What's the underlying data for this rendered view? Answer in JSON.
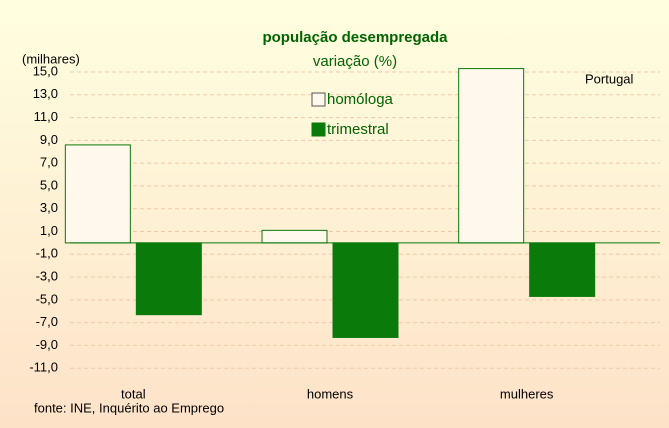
{
  "chart_data": {
    "type": "bar",
    "title": "população desempregada",
    "subtitle": "variação (%)",
    "y_axis_label": "(milhares)",
    "annotation": "Portugal",
    "source": "fonte: INE, Inquérito ao Emprego",
    "categories": [
      "total",
      "homens",
      "mulheres"
    ],
    "series": [
      {
        "name": "homóloga",
        "color": "#fff8ec",
        "values": [
          8.6,
          1.1,
          15.3
        ]
      },
      {
        "name": "trimestral",
        "color": "#0a7a0a",
        "values": [
          -6.3,
          -8.3,
          -4.7
        ]
      }
    ],
    "ylim": [
      -13,
      15
    ],
    "yticks": [
      {
        "value": -11,
        "label": "-11,0"
      },
      {
        "value": -9,
        "label": "-9,0"
      },
      {
        "value": -7,
        "label": "-7,0"
      },
      {
        "value": -5,
        "label": "-5,0"
      },
      {
        "value": -3,
        "label": "-3,0"
      },
      {
        "value": -1,
        "label": "-1,0"
      },
      {
        "value": 1,
        "label": "1,0"
      },
      {
        "value": 3,
        "label": "3,0"
      },
      {
        "value": 5,
        "label": "5,0"
      },
      {
        "value": 7,
        "label": "7,0"
      },
      {
        "value": 9,
        "label": "9,0"
      },
      {
        "value": 11,
        "label": "11,0"
      },
      {
        "value": 13,
        "label": "13,0"
      },
      {
        "value": 15,
        "label": "15,0"
      }
    ],
    "grid": true
  }
}
